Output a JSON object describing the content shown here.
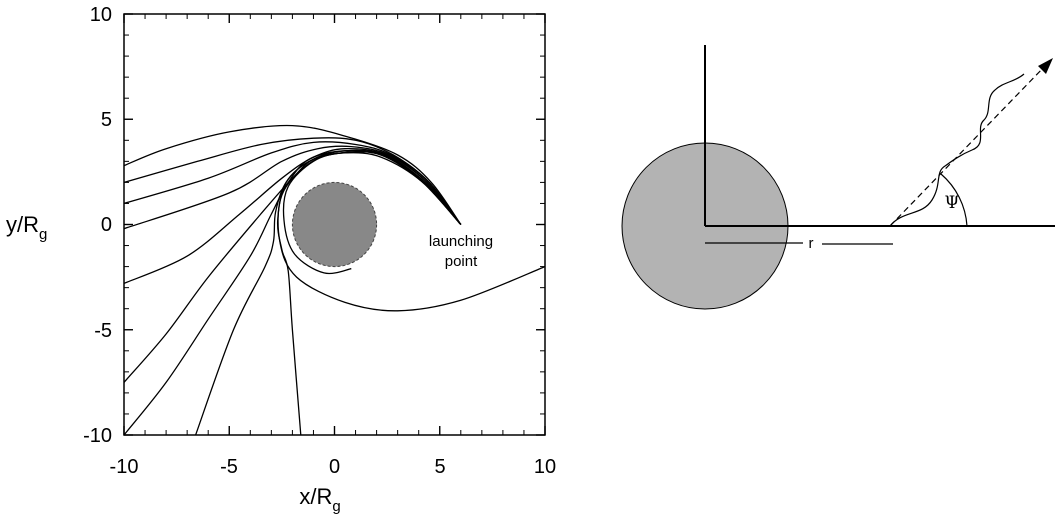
{
  "chart_data": {
    "type": "line",
    "title": "",
    "xlabel": "x/R",
    "xlabel_sub": "g",
    "ylabel": "y/R",
    "ylabel_sub": "g",
    "xlim": [
      -10,
      10
    ],
    "ylim": [
      -10,
      10
    ],
    "x_ticks": [
      "-10",
      "-5",
      "0",
      "5",
      "10"
    ],
    "y_ticks": [
      "10",
      "5",
      "0",
      "-5",
      "-10"
    ],
    "central_body": {
      "center": [
        0,
        0
      ],
      "radius": 2.0,
      "fill": "#888888"
    },
    "launch_point": [
      6.0,
      0.0
    ],
    "annotation": [
      "launching",
      "point"
    ],
    "trajectories": [
      {
        "name": "",
        "points": [
          [
            6.0,
            0.0
          ],
          [
            4.6,
            2.0
          ],
          [
            3.0,
            3.3
          ],
          [
            0.5,
            4.2
          ],
          [
            -2.0,
            4.7
          ],
          [
            -5.0,
            4.4
          ],
          [
            -8.0,
            3.6
          ],
          [
            -10.0,
            2.8
          ]
        ]
      },
      {
        "name": "",
        "points": [
          [
            6.0,
            0.0
          ],
          [
            4.5,
            2.0
          ],
          [
            2.8,
            3.3
          ],
          [
            1.0,
            4.0
          ],
          [
            -1.0,
            4.1
          ],
          [
            -3.5,
            3.8
          ],
          [
            -6.5,
            3.0
          ],
          [
            -10.0,
            2.0
          ]
        ]
      },
      {
        "name": "",
        "points": [
          [
            6.0,
            0.0
          ],
          [
            4.5,
            2.0
          ],
          [
            2.7,
            3.3
          ],
          [
            1.0,
            3.8
          ],
          [
            -1.0,
            3.9
          ],
          [
            -3.0,
            3.4
          ],
          [
            -6.0,
            2.2
          ],
          [
            -10.0,
            1.0
          ]
        ]
      },
      {
        "name": "",
        "points": [
          [
            6.0,
            0.0
          ],
          [
            4.4,
            2.0
          ],
          [
            2.6,
            3.3
          ],
          [
            0.8,
            3.7
          ],
          [
            -0.8,
            3.6
          ],
          [
            -2.5,
            3.0
          ],
          [
            -5.0,
            1.5
          ],
          [
            -10.0,
            -0.2
          ]
        ]
      },
      {
        "name": "",
        "points": [
          [
            6.0,
            0.0
          ],
          [
            4.4,
            2.0
          ],
          [
            2.5,
            3.3
          ],
          [
            0.5,
            3.6
          ],
          [
            -1.0,
            3.2
          ],
          [
            -2.5,
            2.2
          ],
          [
            -4.5,
            0.5
          ],
          [
            -7.0,
            -1.5
          ],
          [
            -10.0,
            -2.8
          ]
        ]
      },
      {
        "name": "",
        "points": [
          [
            6.0,
            0.0
          ],
          [
            4.3,
            2.0
          ],
          [
            2.4,
            3.3
          ],
          [
            0.5,
            3.5
          ],
          [
            -1.0,
            3.1
          ],
          [
            -2.0,
            2.2
          ],
          [
            -3.5,
            0.5
          ],
          [
            -6.0,
            -2.5
          ],
          [
            -8.0,
            -5.2
          ],
          [
            -10.0,
            -7.5
          ]
        ]
      },
      {
        "name": "",
        "points": [
          [
            6.0,
            0.0
          ],
          [
            4.3,
            2.0
          ],
          [
            2.3,
            3.3
          ],
          [
            0.5,
            3.5
          ],
          [
            -1.2,
            3.1
          ],
          [
            -2.2,
            2.0
          ],
          [
            -3.0,
            0.5
          ],
          [
            -4.0,
            -1.5
          ],
          [
            -6.0,
            -4.5
          ],
          [
            -8.0,
            -7.5
          ],
          [
            -10.0,
            -10.0
          ]
        ]
      },
      {
        "name": "",
        "points": [
          [
            6.0,
            0.0
          ],
          [
            4.2,
            2.0
          ],
          [
            2.2,
            3.3
          ],
          [
            0.4,
            3.4
          ],
          [
            -1.2,
            3.0
          ],
          [
            -2.3,
            2.0
          ],
          [
            -2.8,
            0.6
          ],
          [
            -2.9,
            -0.8
          ],
          [
            -3.3,
            -2.0
          ],
          [
            -4.8,
            -5.0
          ],
          [
            -6.6,
            -10.0
          ]
        ]
      },
      {
        "name": "",
        "points": [
          [
            6.0,
            0.0
          ],
          [
            4.2,
            2.0
          ],
          [
            2.2,
            3.2
          ],
          [
            0.5,
            3.4
          ],
          [
            -1.0,
            3.1
          ],
          [
            -2.3,
            2.0
          ],
          [
            -2.7,
            0.2
          ],
          [
            -2.5,
            -1.2
          ],
          [
            -2.2,
            -2.2
          ],
          [
            -2.0,
            -5.0
          ],
          [
            -1.6,
            -10.0
          ]
        ]
      },
      {
        "name": "",
        "points": [
          [
            6.0,
            0.0
          ],
          [
            4.2,
            2.0
          ],
          [
            2.3,
            3.3
          ],
          [
            0.4,
            3.4
          ],
          [
            -1.0,
            3.0
          ],
          [
            -2.2,
            1.8
          ],
          [
            -2.4,
            0.2
          ],
          [
            -1.9,
            -1.4
          ],
          [
            -0.5,
            -2.3
          ],
          [
            0.8,
            -2.1
          ]
        ]
      },
      {
        "name": "",
        "points": [
          [
            6.0,
            0.0
          ],
          [
            4.2,
            2.0
          ],
          [
            2.3,
            3.3
          ],
          [
            0.3,
            3.4
          ],
          [
            -1.2,
            2.9
          ],
          [
            -2.5,
            1.4
          ],
          [
            -2.6,
            -0.8
          ],
          [
            -1.8,
            -2.5
          ],
          [
            0.5,
            -3.7
          ],
          [
            3.0,
            -4.1
          ],
          [
            6.0,
            -3.6
          ],
          [
            10.0,
            -2.0
          ]
        ]
      }
    ],
    "grid": false,
    "legend": "none"
  },
  "right_diagram": {
    "r_label": "r",
    "angle_label": "Ψ"
  }
}
